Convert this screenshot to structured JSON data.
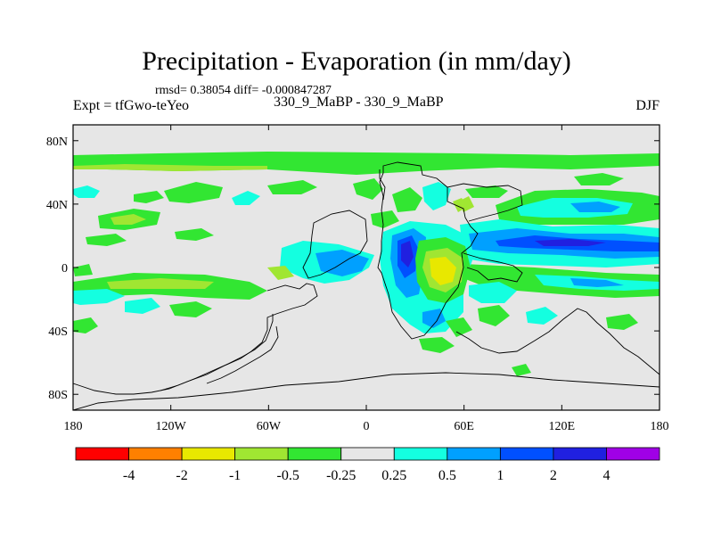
{
  "header": {
    "title": "Precipitation - Evaporation (in mm/day)",
    "stats": "rmsd= 0.38054 diff= -0.000847287",
    "experiment": "Expt = tfGwo-teYeo",
    "case": "330_9_MaBP - 330_9_MaBP",
    "season": "DJF"
  },
  "axes": {
    "lat_ticks": [
      "80N",
      "40N",
      "0",
      "40S",
      "80S"
    ],
    "lon_ticks": [
      "180",
      "120W",
      "60W",
      "0",
      "60E",
      "120E",
      "180"
    ]
  },
  "colorbar": {
    "labels": [
      "-4",
      "-2",
      "-1",
      "-0.5",
      "-0.25",
      "0.25",
      "0.5",
      "1",
      "2",
      "4"
    ],
    "colors": [
      "#ff0000",
      "#ff8000",
      "#e8e800",
      "#a0e632",
      "#32e632",
      "#e6e6e6",
      "#14ffe0",
      "#00a0ff",
      "#0050ff",
      "#2020e0",
      "#a000e6"
    ]
  },
  "map_colors": {
    "background": "#e6e6e6",
    "green": "#32e632",
    "light_green": "#a0e632",
    "cyan": "#14ffe0",
    "light_blue": "#00a0ff",
    "blue": "#0050ff",
    "dark_blue": "#2020e0",
    "yellow": "#e8e800"
  }
}
